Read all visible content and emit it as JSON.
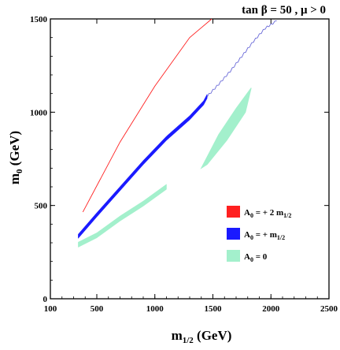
{
  "chart_data": {
    "type": "line",
    "title": "tan β = 50 ,  μ > 0",
    "xlabel": "m",
    "xlabel_sub": "1/2",
    "xlabel_unit": " (GeV)",
    "ylabel": "m",
    "ylabel_sub": "0",
    "ylabel_unit": " (GeV)",
    "xlim": [
      100,
      2500
    ],
    "ylim": [
      0,
      1500
    ],
    "x_ticks": [
      100,
      500,
      1000,
      1500,
      2000,
      2500
    ],
    "y_ticks": [
      0,
      500,
      1000,
      1500
    ],
    "grid": false,
    "legend_position": "bottom-right",
    "series": [
      {
        "name": "A0 = +2 m1/2",
        "legend": {
          "a": "A",
          "a_sub": "0",
          "mid": " = + 2 m",
          "m_sub": "1/2"
        },
        "color": "#ff2020",
        "style": "line",
        "x": [
          380,
          700,
          1000,
          1300,
          1490
        ],
        "y": [
          465,
          840,
          1140,
          1400,
          1500
        ]
      },
      {
        "name": "A0 = +m1/2",
        "legend": {
          "a": "A",
          "a_sub": "0",
          "mid": " = + m",
          "m_sub": "1/2"
        },
        "color": "#1a1aff",
        "style": "band",
        "x": [
          340,
          500,
          700,
          900,
          1100,
          1300,
          1420,
          1450
        ],
        "y": [
          335,
          450,
          590,
          730,
          860,
          970,
          1050,
          1085
        ]
      },
      {
        "name": "A0 = +m1/2 (thin continuation)",
        "color": "#6a6ad8",
        "style": "wiggle",
        "x": [
          1450,
          1550,
          1650,
          1750,
          1850,
          1950,
          2050
        ],
        "y": [
          1085,
          1150,
          1220,
          1300,
          1380,
          1450,
          1490
        ]
      },
      {
        "name": "A0 = 0",
        "legend": {
          "a": "A",
          "a_sub": "0",
          "mid": " = 0",
          "m_sub": ""
        },
        "color": "#a3f0cc",
        "style": "band",
        "x": [
          340,
          500,
          700,
          900,
          1100
        ],
        "y": [
          290,
          340,
          430,
          510,
          600
        ]
      },
      {
        "name": "A0 = 0 (upper region)",
        "color": "#a3f0cc",
        "style": "blob",
        "x": [
          1400,
          1550,
          1700,
          1830,
          1780,
          1620,
          1450
        ],
        "y": [
          700,
          880,
          1020,
          1130,
          1000,
          850,
          720
        ]
      }
    ]
  }
}
